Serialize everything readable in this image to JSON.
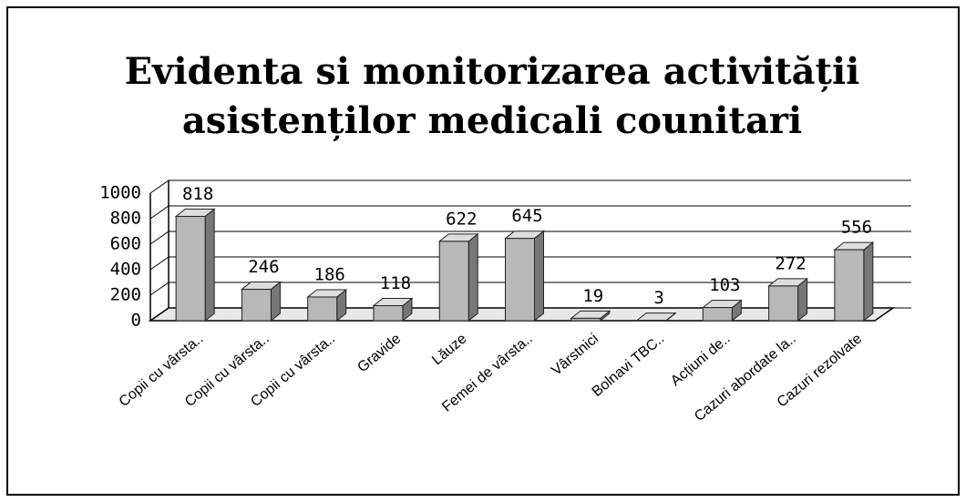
{
  "chart_data": {
    "type": "bar",
    "title": [
      "Evidenta si monitorizarea activității",
      "asistenților medicali counitari"
    ],
    "categories": [
      "Copii cu vârsta..",
      "Copii cu vârsta..",
      "Copii cu vârsta..",
      "Gravide",
      "Lăuze",
      "Femei de vârsta..",
      "Vârstnici",
      "Bolnavi TBC..",
      "Acțiuni de..",
      "Cazuri abordate la..",
      "Cazuri rezolvate"
    ],
    "values": [
      818,
      246,
      186,
      118,
      622,
      645,
      19,
      3,
      103,
      272,
      556
    ],
    "color": "#b8b8b8",
    "ylim": [
      0,
      1000
    ],
    "yticks": [
      0,
      200,
      400,
      600,
      800,
      1000
    ],
    "grid": true
  }
}
